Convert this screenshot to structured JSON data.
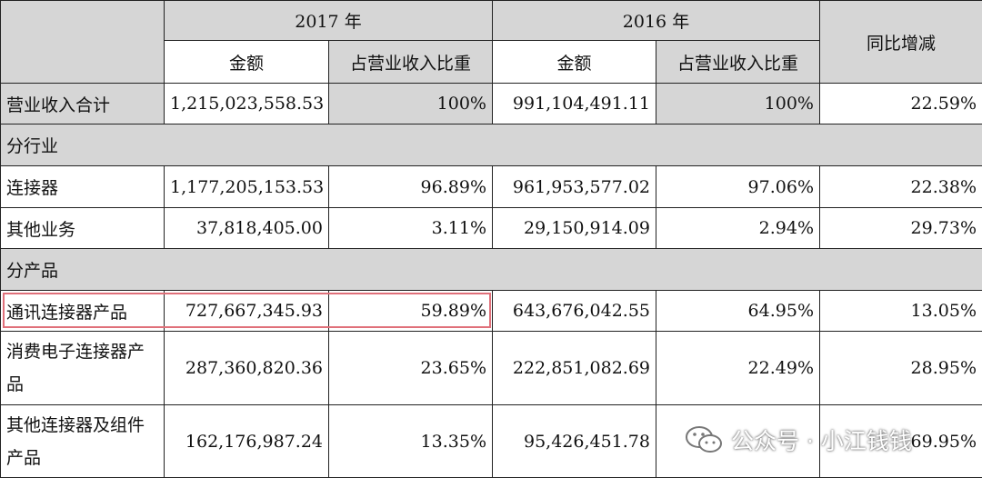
{
  "table": {
    "header": {
      "year_2017": "2017 年",
      "year_2016": "2016 年",
      "yoy": "同比增减",
      "amount_2017": "金额",
      "ratio_2017": "占营业收入比重",
      "amount_2016": "金额",
      "ratio_2016": "占营业收入比重"
    },
    "total": {
      "label": "营业收入合计",
      "amt2017": "1,215,023,558.53",
      "pct2017": "100%",
      "amt2016": "991,104,491.11",
      "pct2016": "100%",
      "yoy": "22.59%"
    },
    "section_industry": "分行业",
    "industry_rows": [
      {
        "label": "连接器",
        "amt2017": "1,177,205,153.53",
        "pct2017": "96.89%",
        "amt2016": "961,953,577.02",
        "pct2016": "97.06%",
        "yoy": "22.38%"
      },
      {
        "label": "其他业务",
        "amt2017": "37,818,405.00",
        "pct2017": "3.11%",
        "amt2016": "29,150,914.09",
        "pct2016": "2.94%",
        "yoy": "29.73%"
      }
    ],
    "section_product": "分产品",
    "product_rows": [
      {
        "label": "通讯连接器产品",
        "amt2017": "727,667,345.93",
        "pct2017": "59.89%",
        "amt2016": "643,676,042.55",
        "pct2016": "64.95%",
        "yoy": "13.05%"
      },
      {
        "label": "消费电子连接器产品",
        "amt2017": "287,360,820.36",
        "pct2017": "23.65%",
        "amt2016": "222,851,082.69",
        "pct2016": "22.49%",
        "yoy": "28.95%"
      },
      {
        "label": "其他连接器及组件产品",
        "amt2017": "162,176,987.24",
        "pct2017": "13.35%",
        "amt2016": "95,426,451.78",
        "pct2016": "",
        "yoy": "69.95%"
      }
    ]
  },
  "watermark": {
    "text": "公众号 · 小江钱钱",
    "icon": "wechat-icon"
  },
  "colors": {
    "header_bg": "#d6d6d6",
    "highlight_border": "#e0707a"
  }
}
